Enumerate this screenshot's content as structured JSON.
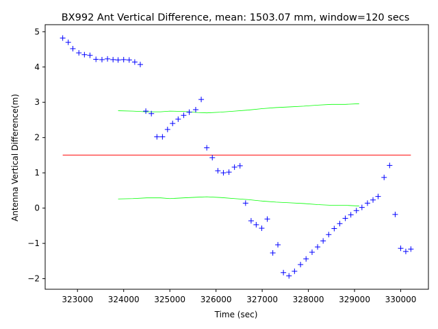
{
  "chart_data": {
    "type": "scatter",
    "title": "BX992 Ant Vertical Difference, mean: 1503.07 mm, window=120 secs",
    "xlabel": "Time (sec)",
    "ylabel": "Antenna Vertical Difference(m)",
    "xlim": [
      322300,
      330600
    ],
    "ylim": [
      -2.3,
      5.2
    ],
    "x_ticks": [
      323000,
      324000,
      325000,
      326000,
      327000,
      328000,
      329000,
      330000
    ],
    "x_tick_labels": [
      "323000",
      "324000",
      "325000",
      "326000",
      "327000",
      "328000",
      "329000",
      "330000"
    ],
    "y_ticks": [
      -2,
      -1,
      0,
      1,
      2,
      3,
      4,
      5
    ],
    "y_tick_labels": [
      "−2",
      "−1",
      "0",
      "1",
      "2",
      "3",
      "4",
      "5"
    ],
    "grid": false,
    "series": [
      {
        "marker": "+",
        "color": "#0000ff",
        "points": [
          [
            322680,
            4.82
          ],
          [
            322800,
            4.7
          ],
          [
            322900,
            4.52
          ],
          [
            323030,
            4.4
          ],
          [
            323150,
            4.35
          ],
          [
            323270,
            4.33
          ],
          [
            323400,
            4.22
          ],
          [
            323530,
            4.21
          ],
          [
            323650,
            4.23
          ],
          [
            323770,
            4.21
          ],
          [
            323880,
            4.2
          ],
          [
            324000,
            4.21
          ],
          [
            324120,
            4.2
          ],
          [
            324240,
            4.14
          ],
          [
            324360,
            4.07
          ],
          [
            324480,
            2.75
          ],
          [
            324600,
            2.68
          ],
          [
            324720,
            2.02
          ],
          [
            324840,
            2.02
          ],
          [
            324950,
            2.23
          ],
          [
            325060,
            2.4
          ],
          [
            325180,
            2.52
          ],
          [
            325300,
            2.63
          ],
          [
            325420,
            2.72
          ],
          [
            325560,
            2.79
          ],
          [
            325680,
            3.08
          ],
          [
            325800,
            1.71
          ],
          [
            325920,
            1.43
          ],
          [
            326040,
            1.06
          ],
          [
            326160,
            1.0
          ],
          [
            326280,
            1.02
          ],
          [
            326400,
            1.16
          ],
          [
            326520,
            1.2
          ],
          [
            326640,
            0.14
          ],
          [
            326760,
            -0.36
          ],
          [
            326870,
            -0.47
          ],
          [
            326990,
            -0.57
          ],
          [
            327110,
            -0.31
          ],
          [
            327230,
            -1.27
          ],
          [
            327340,
            -1.04
          ],
          [
            327460,
            -1.83
          ],
          [
            327580,
            -1.92
          ],
          [
            327700,
            -1.79
          ],
          [
            327830,
            -1.6
          ],
          [
            327950,
            -1.44
          ],
          [
            328080,
            -1.25
          ],
          [
            328200,
            -1.1
          ],
          [
            328320,
            -0.93
          ],
          [
            328440,
            -0.75
          ],
          [
            328560,
            -0.58
          ],
          [
            328680,
            -0.44
          ],
          [
            328800,
            -0.29
          ],
          [
            328920,
            -0.19
          ],
          [
            329040,
            -0.07
          ],
          [
            329160,
            0.02
          ],
          [
            329280,
            0.14
          ],
          [
            329400,
            0.23
          ],
          [
            329510,
            0.33
          ],
          [
            329640,
            0.87
          ],
          [
            329760,
            1.21
          ],
          [
            329880,
            -0.18
          ],
          [
            330000,
            -1.14
          ],
          [
            330110,
            -1.23
          ],
          [
            330220,
            -1.16
          ]
        ]
      },
      {
        "type": "line",
        "color": "#ff0000",
        "x": [
          322680,
          330220
        ],
        "values": [
          1.503,
          1.503
        ]
      },
      {
        "type": "line",
        "color": "#00ff00",
        "x": [
          323880,
          324200,
          324500,
          324800,
          325000,
          325300,
          325600,
          325800,
          326100,
          326400,
          326700,
          327000,
          327300,
          327600,
          327900,
          328200,
          328500,
          328800,
          329100
        ],
        "values": [
          2.76,
          2.75,
          2.73,
          2.73,
          2.75,
          2.74,
          2.71,
          2.7,
          2.72,
          2.75,
          2.78,
          2.82,
          2.85,
          2.87,
          2.89,
          2.92,
          2.94,
          2.94,
          2.96
        ]
      },
      {
        "type": "line",
        "color": "#00ff00",
        "x": [
          323880,
          324200,
          324500,
          324800,
          325000,
          325300,
          325600,
          325800,
          326100,
          326400,
          326700,
          327000,
          327300,
          327600,
          327900,
          328200,
          328500,
          328800,
          329100
        ],
        "values": [
          0.26,
          0.27,
          0.29,
          0.29,
          0.27,
          0.29,
          0.31,
          0.32,
          0.3,
          0.27,
          0.24,
          0.2,
          0.17,
          0.15,
          0.13,
          0.1,
          0.08,
          0.08,
          0.06
        ]
      }
    ]
  }
}
